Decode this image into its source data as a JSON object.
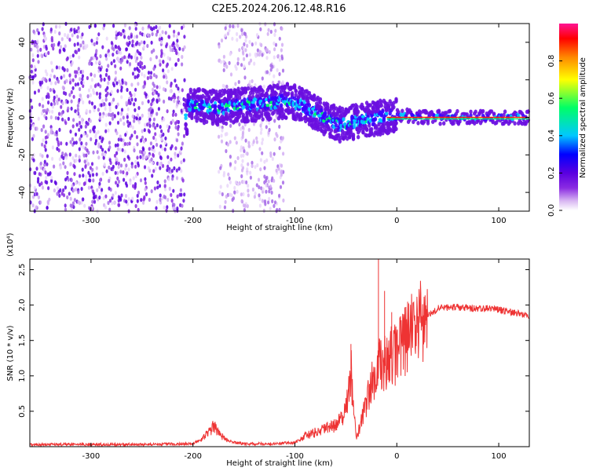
{
  "title": "C2E5.2024.206.12.48.R16",
  "chart_data": [
    {
      "type": "heatmap",
      "xlabel": "Height of straight line (km)",
      "ylabel": "Frequency (Hz)",
      "xlim": [
        -360,
        130
      ],
      "ylim": [
        -50,
        50
      ],
      "xticks": [
        -300,
        -200,
        -100,
        0,
        100
      ],
      "yticks": [
        -40,
        -20,
        0,
        20,
        40
      ],
      "colorbar": {
        "label": "Normalized spectral amplitude",
        "range": [
          0.0,
          1.0
        ],
        "ticks": [
          0.0,
          0.2,
          0.4,
          0.6,
          0.8
        ],
        "colormap": [
          "#ffffff",
          "#d9b8f2",
          "#8a2be2",
          "#5a00e0",
          "#0000ff",
          "#00c8ff",
          "#00ff66",
          "#ffff00",
          "#ff8800",
          "#ff0000",
          "#ff1493"
        ]
      },
      "noise_regions_km": [
        [
          -360,
          -208
        ],
        [
          -175,
          -110
        ]
      ],
      "ridge": {
        "x": [
          -205,
          -190,
          -175,
          -160,
          -140,
          -120,
          -105,
          -95,
          -85,
          -75,
          -65,
          -55,
          -45,
          -35,
          -25,
          -15,
          -5,
          5,
          20,
          50,
          80,
          110,
          130
        ],
        "y": [
          7,
          6,
          5,
          6,
          7,
          8,
          9,
          7,
          4,
          1,
          -2,
          -4,
          -3,
          -1,
          -1,
          0,
          1,
          1,
          0,
          0,
          0,
          0,
          0
        ]
      }
    },
    {
      "type": "line",
      "xlabel": "Height of straight line (km)",
      "ylabel": "SNR (10 * v/v)",
      "yscale_label": "(x10⁴)",
      "xlim": [
        -360,
        130
      ],
      "ylim": [
        0,
        2.65
      ],
      "xticks": [
        -300,
        -200,
        -100,
        0,
        100
      ],
      "yticks": [
        0.5,
        1.0,
        1.5,
        2.0,
        2.5
      ],
      "ytick_labels": [
        "0.5",
        "1.0",
        "1.5",
        "2.0",
        "2.5"
      ],
      "color": "#ee3333",
      "series": [
        {
          "x": [
            -360,
            -300,
            -250,
            -200,
            -190,
            -180,
            -175,
            -170,
            -160,
            -150,
            -120,
            -100,
            -90,
            -80,
            -70,
            -60,
            -50,
            -45,
            -40,
            -35,
            -30,
            -25,
            -20,
            -15,
            -10,
            -5,
            0,
            5,
            10,
            20,
            30,
            40,
            50,
            60,
            70,
            80,
            90,
            100,
            110,
            120,
            130
          ],
          "y": [
            0.03,
            0.03,
            0.03,
            0.04,
            0.12,
            0.28,
            0.22,
            0.12,
            0.06,
            0.04,
            0.04,
            0.06,
            0.15,
            0.2,
            0.25,
            0.3,
            0.5,
            1.1,
            0.1,
            0.35,
            0.6,
            0.9,
            1.05,
            1.2,
            1.15,
            1.3,
            1.3,
            1.45,
            1.55,
            1.7,
            1.85,
            1.95,
            1.97,
            1.97,
            1.96,
            1.95,
            1.95,
            1.93,
            1.91,
            1.88,
            1.85
          ]
        }
      ],
      "spikes": [
        {
          "x": -45,
          "y": 1.45
        },
        {
          "x": -18,
          "y": 2.65
        },
        {
          "x": -12,
          "y": 2.2
        },
        {
          "x": -5,
          "y": 1.9
        }
      ]
    }
  ]
}
